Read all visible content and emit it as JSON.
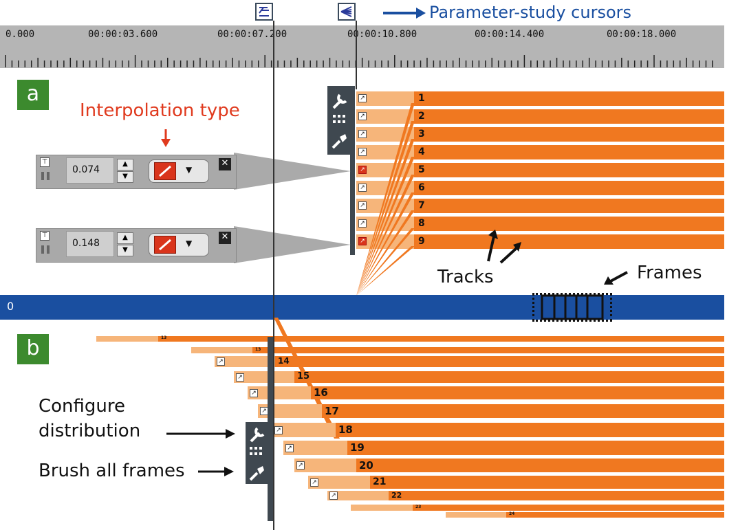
{
  "ruler": {
    "ticks": [
      "0.000",
      "00:00:03.600",
      "00:00:07.200",
      "00:00:10.800",
      "00:00:14.400",
      "00:00:18.000"
    ]
  },
  "annotations": {
    "parameter_study_cursors": "Parameter-study cursors",
    "interpolation_type": "Interpolation type",
    "tracks": "Tracks",
    "frames": "Frames",
    "configure_distribution_line1": "Configure",
    "configure_distribution_line2": "distribution",
    "brush_all_frames": "Brush all frames"
  },
  "panels": {
    "a_label": "a",
    "b_label": "b"
  },
  "keyframe_editors": [
    {
      "value": "0.074"
    },
    {
      "value": "0.148"
    }
  ],
  "main_track": {
    "label": "0"
  },
  "tracks_a": [
    "1",
    "2",
    "3",
    "4",
    "5",
    "6",
    "7",
    "8",
    "9"
  ],
  "tracks_b": [
    "13",
    "13",
    "14",
    "15",
    "16",
    "17",
    "18",
    "19",
    "20",
    "21",
    "22",
    "23",
    "24"
  ],
  "icons": {
    "wrench": "wrench-icon",
    "grid": "grid-icon",
    "brush": "brush-icon",
    "pin": "pin-icon",
    "close": "close-icon"
  },
  "colors": {
    "track": "#f07820",
    "track_light": "#f6b57a",
    "main_track": "#1a4fa0",
    "panel_label": "#3c8a2e",
    "interpolation_red": "#d9341b",
    "annotation_red": "#e03a1e",
    "annotation_blue": "#1a4fa0"
  }
}
